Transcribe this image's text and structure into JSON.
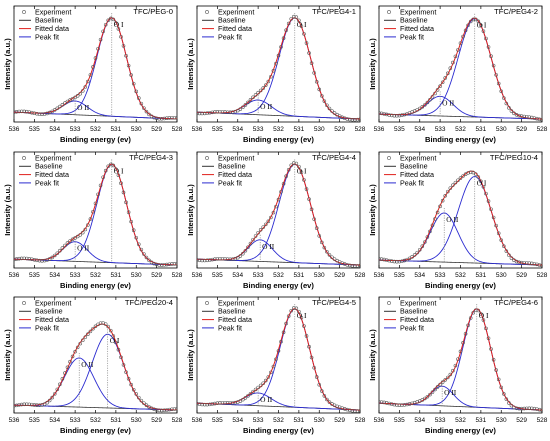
{
  "chart_data": [
    {
      "type": "line",
      "title": "TFC/PEG-0",
      "xlabel": "Binding energy (ev)",
      "ylabel": "Intensity (a.u.)",
      "xlim": [
        536,
        528
      ],
      "xticks": [
        536,
        535,
        534,
        533,
        532,
        531,
        530,
        529,
        528
      ],
      "legend": [
        "Experiment",
        "Baseline",
        "Fitted data",
        "Peak fit"
      ],
      "legend_position": "top-left",
      "series": [
        {
          "name": "Baseline",
          "kind": "linear",
          "values": [
            0.1,
            0.03
          ]
        },
        {
          "name": "Peak fit",
          "label": "O I",
          "center": 531.2,
          "height": 1.0,
          "fwhm": 1.7
        },
        {
          "name": "Peak fit",
          "label": "O II",
          "center": 533.0,
          "height": 0.14,
          "fwhm": 1.4
        }
      ]
    },
    {
      "type": "line",
      "title": "TFC/PEG4-1",
      "xlabel": "Binding energy (ev)",
      "ylabel": "Intensity (a.u.)",
      "xlim": [
        536,
        528
      ],
      "xticks": [
        536,
        535,
        534,
        533,
        532,
        531,
        530,
        529,
        528
      ],
      "legend": [
        "Experiment",
        "Baseline",
        "Fitted data",
        "Peak fit"
      ],
      "legend_position": "top-left",
      "series": [
        {
          "name": "Baseline",
          "kind": "linear",
          "values": [
            0.1,
            0.03
          ]
        },
        {
          "name": "Peak fit",
          "label": "O I",
          "center": 531.2,
          "height": 1.0,
          "fwhm": 1.8
        },
        {
          "name": "Peak fit",
          "label": "O II",
          "center": 533.0,
          "height": 0.15,
          "fwhm": 1.5
        }
      ]
    },
    {
      "type": "line",
      "title": "TFC/PEG4-2",
      "xlabel": "Binding energy (ev)",
      "ylabel": "Intensity (a.u.)",
      "xlim": [
        536,
        528
      ],
      "xticks": [
        536,
        535,
        534,
        533,
        532,
        531,
        530,
        529,
        528
      ],
      "legend": [
        "Experiment",
        "Baseline",
        "Fitted data",
        "Peak fit"
      ],
      "legend_position": "top-left",
      "series": [
        {
          "name": "Baseline",
          "kind": "linear",
          "values": [
            0.08,
            0.03
          ]
        },
        {
          "name": "Peak fit",
          "label": "O I",
          "center": 531.3,
          "height": 1.0,
          "fwhm": 1.9
        },
        {
          "name": "Peak fit",
          "label": "O II",
          "center": 533.0,
          "height": 0.2,
          "fwhm": 1.5
        }
      ]
    },
    {
      "type": "line",
      "title": "TFC/PEG4-3",
      "xlabel": "Binding energy (ev)",
      "ylabel": "Intensity (a.u.)",
      "xlim": [
        536,
        528
      ],
      "xticks": [
        536,
        535,
        534,
        533,
        532,
        531,
        530,
        529,
        528
      ],
      "legend": [
        "Experiment",
        "Baseline",
        "Fitted data",
        "Peak fit"
      ],
      "legend_position": "top-left",
      "series": [
        {
          "name": "Baseline",
          "kind": "linear",
          "values": [
            0.09,
            0.03
          ]
        },
        {
          "name": "Peak fit",
          "label": "O I",
          "center": 531.2,
          "height": 1.0,
          "fwhm": 1.7
        },
        {
          "name": "Peak fit",
          "label": "O II",
          "center": 533.0,
          "height": 0.2,
          "fwhm": 1.4
        }
      ]
    },
    {
      "type": "line",
      "title": "TFC/PEG4-4",
      "xlabel": "Binding energy (ev)",
      "ylabel": "Intensity (a.u.)",
      "xlim": [
        536,
        528
      ],
      "xticks": [
        536,
        535,
        534,
        533,
        532,
        531,
        530,
        529,
        528
      ],
      "legend": [
        "Experiment",
        "Baseline",
        "Fitted data",
        "Peak fit"
      ],
      "legend_position": "top-left",
      "series": [
        {
          "name": "Baseline",
          "kind": "linear",
          "values": [
            0.09,
            0.03
          ]
        },
        {
          "name": "Peak fit",
          "label": "O I",
          "center": 531.2,
          "height": 1.0,
          "fwhm": 1.8
        },
        {
          "name": "Peak fit",
          "label": "O II",
          "center": 532.9,
          "height": 0.22,
          "fwhm": 1.4
        }
      ]
    },
    {
      "type": "line",
      "title": "TFC/PEG10-4",
      "xlabel": "Binding energy (ev)",
      "ylabel": "Intensity (a.u.)",
      "xlim": [
        536,
        528
      ],
      "xticks": [
        536,
        535,
        534,
        533,
        532,
        531,
        530,
        529,
        528
      ],
      "legend": [
        "Experiment",
        "Baseline",
        "Fitted data",
        "Peak fit"
      ],
      "legend_position": "top-left",
      "series": [
        {
          "name": "Baseline",
          "kind": "linear",
          "values": [
            0.08,
            0.03
          ]
        },
        {
          "name": "Peak fit",
          "label": "O I",
          "center": 531.3,
          "height": 0.88,
          "fwhm": 1.9
        },
        {
          "name": "Peak fit",
          "label": "O II",
          "center": 532.8,
          "height": 0.5,
          "fwhm": 1.6
        }
      ]
    },
    {
      "type": "line",
      "title": "TFC/PEG20-4",
      "xlabel": "Binding energy (ev)",
      "ylabel": "Intensity (a.u.)",
      "xlim": [
        536,
        528
      ],
      "xticks": [
        536,
        535,
        534,
        533,
        532,
        531,
        530,
        529,
        528
      ],
      "legend": [
        "Experiment",
        "Baseline",
        "Fitted data",
        "Peak fit"
      ],
      "legend_position": "top-left",
      "series": [
        {
          "name": "Baseline",
          "kind": "linear",
          "values": [
            0.08,
            0.03
          ]
        },
        {
          "name": "Peak fit",
          "label": "O I",
          "center": 531.4,
          "height": 0.75,
          "fwhm": 1.8
        },
        {
          "name": "Peak fit",
          "label": "O II",
          "center": 532.8,
          "height": 0.5,
          "fwhm": 1.7
        }
      ]
    },
    {
      "type": "line",
      "title": "TFC/PEG4-5",
      "xlabel": "Binding energy (ev)",
      "ylabel": "Intensity (a.u.)",
      "xlim": [
        536,
        528
      ],
      "xticks": [
        536,
        535,
        534,
        533,
        532,
        531,
        530,
        529,
        528
      ],
      "legend": [
        "Experiment",
        "Baseline",
        "Fitted data",
        "Peak fit"
      ],
      "legend_position": "top-left",
      "series": [
        {
          "name": "Baseline",
          "kind": "linear",
          "values": [
            0.1,
            0.03
          ]
        },
        {
          "name": "Peak fit",
          "label": "O I",
          "center": 531.2,
          "height": 1.0,
          "fwhm": 1.7
        },
        {
          "name": "Peak fit",
          "label": "O II",
          "center": 533.0,
          "height": 0.13,
          "fwhm": 1.5
        }
      ]
    },
    {
      "type": "line",
      "title": "TFC/PEG4-6",
      "xlabel": "Binding energy (ev)",
      "ylabel": "Intensity (a.u.)",
      "xlim": [
        536,
        528
      ],
      "xticks": [
        536,
        535,
        534,
        533,
        532,
        531,
        530,
        529,
        528
      ],
      "legend": [
        "Experiment",
        "Baseline",
        "Fitted data",
        "Peak fit"
      ],
      "legend_position": "top-left",
      "series": [
        {
          "name": "Baseline",
          "kind": "linear",
          "values": [
            0.1,
            0.03
          ]
        },
        {
          "name": "Peak fit",
          "label": "O I",
          "center": 531.2,
          "height": 1.0,
          "fwhm": 1.6
        },
        {
          "name": "Peak fit",
          "label": "O II",
          "center": 532.9,
          "height": 0.2,
          "fwhm": 1.3
        }
      ]
    }
  ],
  "colors": {
    "experiment": "#555555",
    "baseline": "#333333",
    "fitted": "#e0201b",
    "peak": "#2b2bd0",
    "marker_line": "#777777"
  }
}
